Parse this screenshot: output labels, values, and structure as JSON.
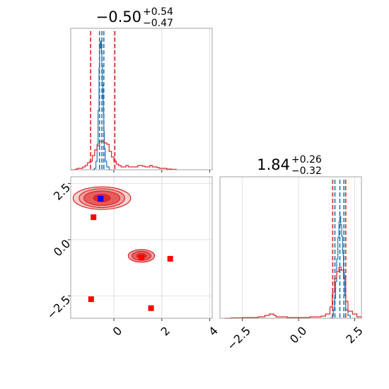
{
  "chart_data": [
    {
      "type": "histogram",
      "panel": "marginal-x",
      "title": {
        "value": "−0.50",
        "plus": "+0.54",
        "minus": "−0.47"
      },
      "xlim": [
        -1.8,
        4.1
      ],
      "ylim": [
        0,
        1
      ],
      "xticks": [
        -2,
        0,
        2,
        4
      ],
      "grid": true,
      "quantile_lines": {
        "red": [
          -0.97,
          0.04
        ],
        "blue": [
          -0.6,
          -0.5,
          -0.42
        ]
      },
      "series": [
        {
          "color": "#1f77b4",
          "x": [
            -0.9,
            -0.82,
            -0.75,
            -0.7,
            -0.66,
            -0.62,
            -0.6,
            -0.58,
            -0.56,
            -0.54,
            -0.52,
            -0.5,
            -0.48,
            -0.46,
            -0.44,
            -0.42,
            -0.4,
            -0.36,
            -0.3,
            -0.2,
            -0.1
          ],
          "y": [
            0.0,
            0.01,
            0.06,
            0.18,
            0.42,
            0.72,
            0.88,
            0.9,
            0.86,
            0.91,
            0.82,
            0.74,
            0.6,
            0.49,
            0.4,
            0.27,
            0.15,
            0.06,
            0.02,
            0.0,
            0.0
          ]
        },
        {
          "color": "#d62728",
          "x": [
            -1.8,
            -1.6,
            -1.5,
            -1.4,
            -1.3,
            -1.2,
            -1.1,
            -1.0,
            -0.9,
            -0.8,
            -0.7,
            -0.6,
            -0.5,
            -0.4,
            -0.3,
            -0.2,
            -0.1,
            0.0,
            0.1,
            0.2,
            0.3,
            0.4,
            0.5,
            0.6,
            0.7,
            0.8,
            0.9,
            1.0,
            1.1,
            1.2,
            1.3,
            1.4,
            1.5,
            1.6,
            1.7,
            1.8,
            1.9,
            2.0,
            2.2,
            2.4,
            2.6
          ],
          "y": [
            0.0,
            0.005,
            0.01,
            0.01,
            0.02,
            0.03,
            0.05,
            0.06,
            0.1,
            0.14,
            0.17,
            0.2,
            0.2,
            0.19,
            0.18,
            0.13,
            0.09,
            0.06,
            0.04,
            0.03,
            0.02,
            0.02,
            0.03,
            0.02,
            0.02,
            0.02,
            0.02,
            0.03,
            0.03,
            0.025,
            0.02,
            0.02,
            0.03,
            0.02,
            0.02,
            0.015,
            0.01,
            0.01,
            0.005,
            0.003,
            0.0
          ]
        }
      ]
    },
    {
      "type": "scatter",
      "panel": "joint",
      "xlim": [
        -1.8,
        4.1
      ],
      "ylim": [
        -3.5,
        2.8
      ],
      "xticks": [
        0,
        2,
        4
      ],
      "xtick_labels": [
        "0",
        "2",
        "4"
      ],
      "yticks": [
        -2.5,
        0.0,
        2.5
      ],
      "ytick_labels": [
        "−2.5",
        "0.0",
        "2.5"
      ],
      "grid": true,
      "contour_regions": [
        {
          "center": [
            -0.5,
            1.85
          ],
          "levels": [
            [
              1.2,
              0.5
            ],
            [
              0.95,
              0.42
            ],
            [
              0.75,
              0.32
            ],
            [
              0.35,
              0.17
            ]
          ]
        },
        {
          "center": [
            1.15,
            -0.72
          ],
          "levels": [
            [
              0.55,
              0.28
            ],
            [
              0.4,
              0.2
            ],
            [
              0.2,
              0.1
            ]
          ]
        }
      ],
      "markers": {
        "red": [
          [
            -0.85,
            1.0
          ],
          [
            1.15,
            -0.8
          ],
          [
            2.35,
            -0.85
          ],
          [
            -0.95,
            -2.65
          ],
          [
            1.55,
            -3.05
          ]
        ],
        "blue": [
          [
            -0.55,
            1.83
          ]
        ]
      }
    },
    {
      "type": "histogram",
      "panel": "marginal-y",
      "title": {
        "value": "1.84",
        "plus": "+0.26",
        "minus": "−0.32"
      },
      "xlim": [
        -3.5,
        2.8
      ],
      "ylim": [
        0,
        1
      ],
      "xticks": [
        -2.5,
        0.0,
        2.5
      ],
      "xtick_labels": [
        "−2.5",
        "0.0",
        "2.5"
      ],
      "grid": true,
      "quantile_lines": {
        "red": [
          1.52,
          2.1
        ],
        "blue": [
          1.62,
          1.84,
          2.02
        ]
      },
      "series": [
        {
          "color": "#1f77b4",
          "x": [
            1.4,
            1.5,
            1.55,
            1.6,
            1.65,
            1.7,
            1.75,
            1.8,
            1.84,
            1.88,
            1.92,
            1.96,
            2.0,
            2.05,
            2.1,
            2.2,
            2.3
          ],
          "y": [
            0.0,
            0.02,
            0.06,
            0.14,
            0.26,
            0.42,
            0.57,
            0.68,
            0.72,
            0.66,
            0.58,
            0.46,
            0.32,
            0.16,
            0.06,
            0.02,
            0.0
          ]
        },
        {
          "color": "#d62728",
          "x": [
            -3.3,
            -3.0,
            -2.5,
            -2.0,
            -1.8,
            -1.5,
            -1.3,
            -1.1,
            -1.0,
            -0.8,
            -0.5,
            0.0,
            0.5,
            1.0,
            1.2,
            1.4,
            1.5,
            1.6,
            1.7,
            1.8,
            1.9,
            2.0,
            2.1,
            2.2,
            2.4,
            2.6,
            2.8
          ],
          "y": [
            0.0,
            0.003,
            0.005,
            0.005,
            0.01,
            0.02,
            0.03,
            0.02,
            0.01,
            0.01,
            0.005,
            0.005,
            0.01,
            0.015,
            0.03,
            0.08,
            0.18,
            0.28,
            0.33,
            0.36,
            0.34,
            0.28,
            0.12,
            0.05,
            0.03,
            0.01,
            0.0
          ]
        }
      ]
    }
  ]
}
